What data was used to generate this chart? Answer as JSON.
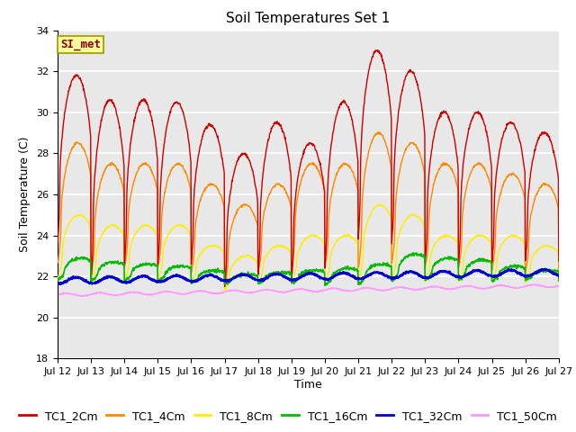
{
  "title": "Soil Temperatures Set 1",
  "xlabel": "Time",
  "ylabel": "Soil Temperature (C)",
  "ylim": [
    18,
    34
  ],
  "yticks": [
    18,
    20,
    22,
    24,
    26,
    28,
    30,
    32,
    34
  ],
  "xtick_labels": [
    "Jul 12",
    "Jul 13",
    "Jul 14",
    "Jul 15",
    "Jul 16",
    "Jul 17",
    "Jul 18",
    "Jul 19",
    "Jul 20",
    "Jul 21",
    "Jul 22",
    "Jul 23",
    "Jul 24",
    "Jul 25",
    "Jul 26",
    "Jul 27"
  ],
  "series_colors": [
    "#cc0000",
    "#ff8800",
    "#ffee00",
    "#00bb00",
    "#0000cc",
    "#ff99ff"
  ],
  "series_names": [
    "TC1_2Cm",
    "TC1_4Cm",
    "TC1_8Cm",
    "TC1_16Cm",
    "TC1_32Cm",
    "TC1_50Cm"
  ],
  "annotation_text": "SI_met",
  "annotation_bg": "#ffff99",
  "annotation_border": "#999900",
  "plot_bg": "#e8e8e8",
  "grid_color": "#ffffff",
  "title_fontsize": 11,
  "axis_label_fontsize": 9,
  "tick_fontsize": 8,
  "legend_fontsize": 9
}
